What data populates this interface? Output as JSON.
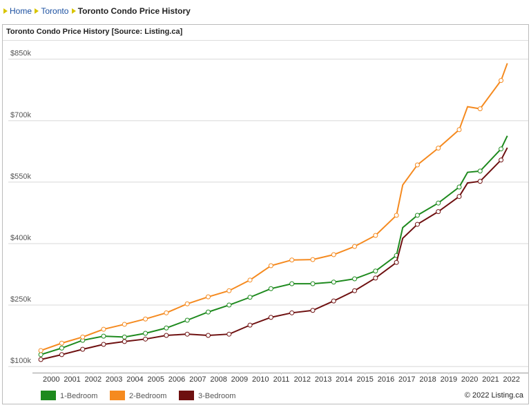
{
  "breadcrumb": {
    "home": "Home",
    "city": "Toronto",
    "current": "Toronto Condo Price History"
  },
  "chart_data": {
    "type": "line",
    "title": "Toronto Condo Price History [Source: Listing.ca]",
    "x": [
      2000,
      2001,
      2002,
      2003,
      2004,
      2005,
      2006,
      2007,
      2008,
      2009,
      2010,
      2011,
      2012,
      2013,
      2014,
      2015,
      2016,
      2017,
      2017.3,
      2018,
      2019,
      2020,
      2020.4,
      2021,
      2022,
      2022.3
    ],
    "series": [
      {
        "name": "1-Bedroom",
        "color": "#1e8a1e",
        "values": [
          129000,
          145000,
          164000,
          174000,
          172000,
          181000,
          194000,
          213000,
          233000,
          250000,
          269000,
          290000,
          302000,
          302000,
          306000,
          314000,
          333000,
          371000,
          439000,
          469000,
          499000,
          538000,
          574000,
          577000,
          631000,
          663000
        ]
      },
      {
        "name": "2-Bedroom",
        "color": "#f58a1f",
        "values": [
          139000,
          157000,
          172000,
          191000,
          203000,
          216000,
          231000,
          253000,
          270000,
          285000,
          311000,
          346000,
          360000,
          361000,
          373000,
          393000,
          420000,
          469000,
          543000,
          592000,
          633000,
          678000,
          734000,
          729000,
          798000,
          840000
        ]
      },
      {
        "name": "3-Bedroom",
        "color": "#6e1010",
        "values": [
          117000,
          129000,
          142000,
          154000,
          161000,
          167000,
          176000,
          179000,
          176000,
          179000,
          201000,
          220000,
          231000,
          237000,
          260000,
          285000,
          316000,
          354000,
          413000,
          447000,
          478000,
          515000,
          548000,
          552000,
          604000,
          634000
        ]
      }
    ],
    "xlim": [
      1999.6,
      2023.3
    ],
    "xticks": [
      {
        "value": 2000.5,
        "label": "2000"
      },
      {
        "value": 2001.5,
        "label": "2001"
      },
      {
        "value": 2002.5,
        "label": "2002"
      },
      {
        "value": 2003.5,
        "label": "2003"
      },
      {
        "value": 2004.5,
        "label": "2004"
      },
      {
        "value": 2005.5,
        "label": "2005"
      },
      {
        "value": 2006.5,
        "label": "2006"
      },
      {
        "value": 2007.5,
        "label": "2007"
      },
      {
        "value": 2008.5,
        "label": "2008"
      },
      {
        "value": 2009.5,
        "label": "2009"
      },
      {
        "value": 2010.5,
        "label": "2010"
      },
      {
        "value": 2011.5,
        "label": "2011"
      },
      {
        "value": 2012.5,
        "label": "2012"
      },
      {
        "value": 2013.5,
        "label": "2013"
      },
      {
        "value": 2014.5,
        "label": "2014"
      },
      {
        "value": 2015.5,
        "label": "2015"
      },
      {
        "value": 2016.5,
        "label": "2016"
      },
      {
        "value": 2017.5,
        "label": "2017"
      },
      {
        "value": 2018.5,
        "label": "2018"
      },
      {
        "value": 2019.5,
        "label": "2019"
      },
      {
        "value": 2020.5,
        "label": "2020"
      },
      {
        "value": 2021.5,
        "label": "2021"
      },
      {
        "value": 2022.5,
        "label": "2022"
      }
    ],
    "ylim": [
      85000,
      885000
    ],
    "yticks": [
      {
        "value": 100000,
        "label": "$100k"
      },
      {
        "value": 250000,
        "label": "$250k"
      },
      {
        "value": 400000,
        "label": "$400k"
      },
      {
        "value": 550000,
        "label": "$550k"
      },
      {
        "value": 700000,
        "label": "$700k"
      },
      {
        "value": 850000,
        "label": "$850k"
      }
    ],
    "grid": true,
    "copyright": "© 2022 Listing.ca"
  }
}
